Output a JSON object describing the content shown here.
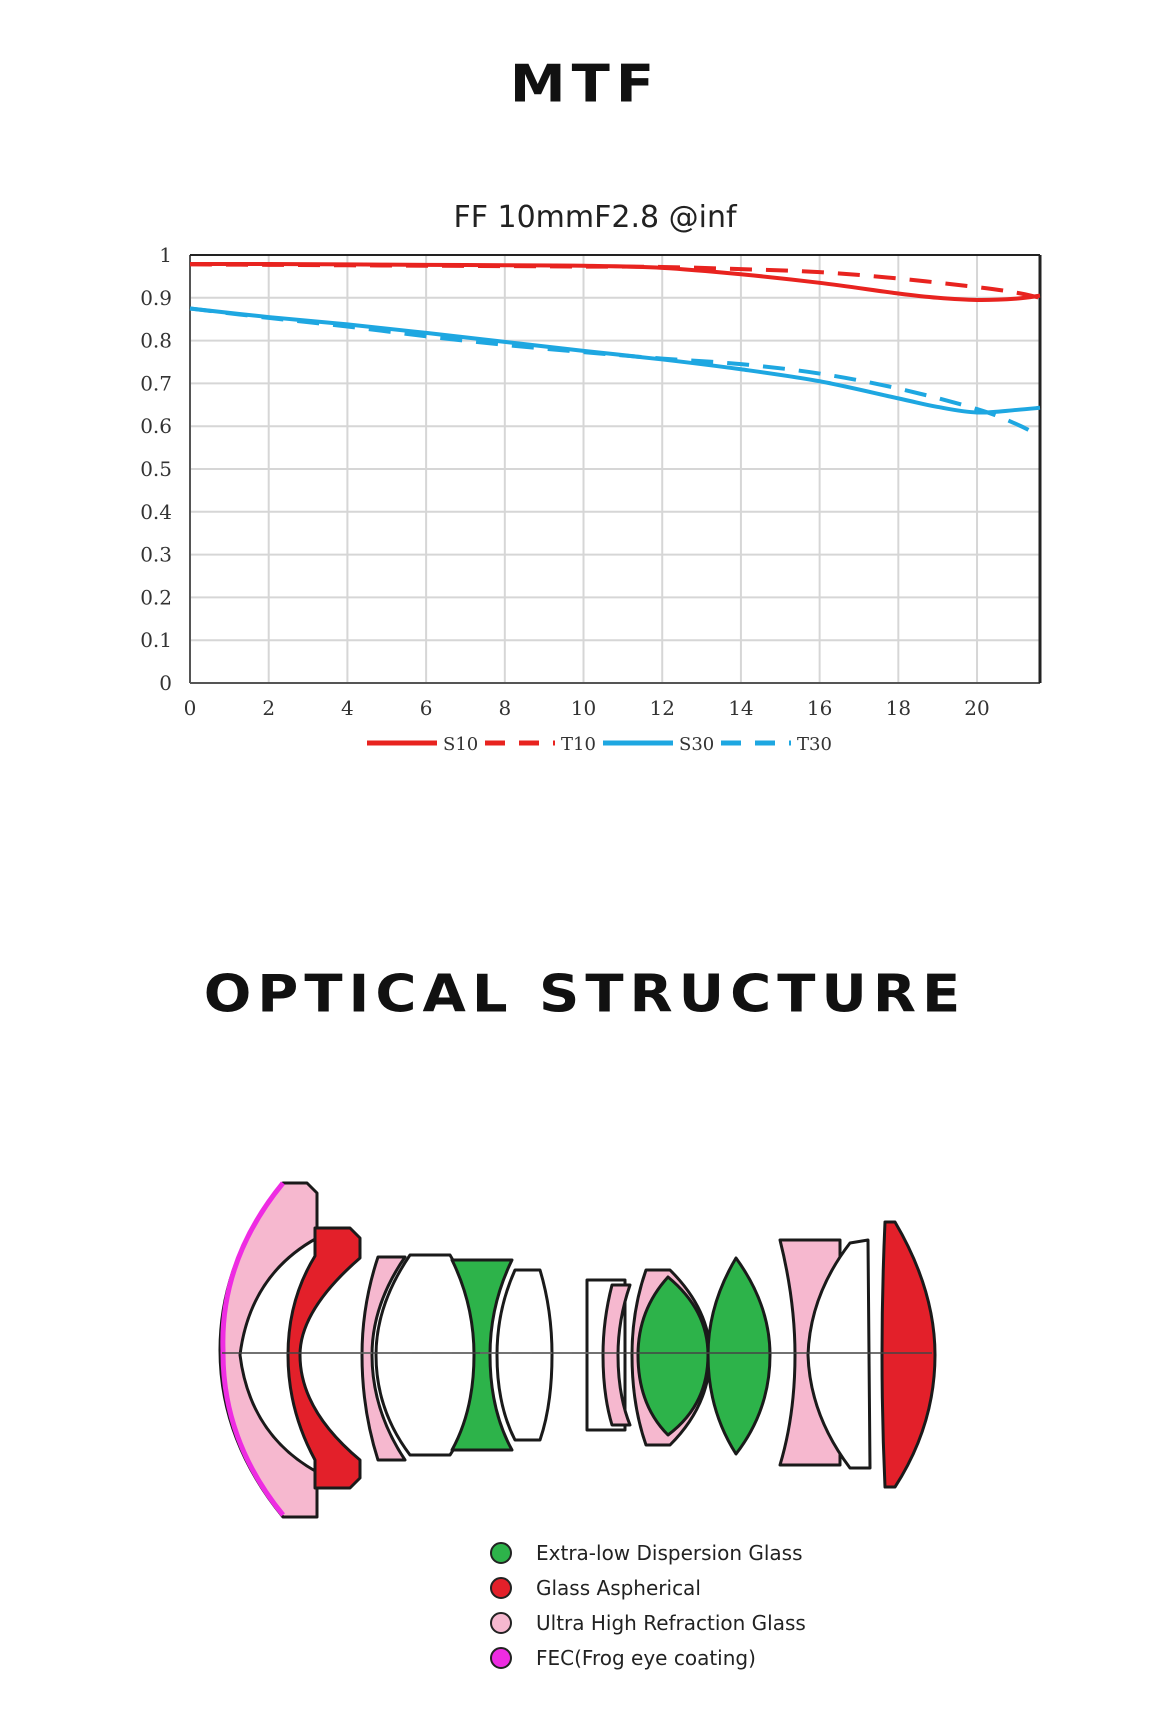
{
  "headings": {
    "mtf": "MTF",
    "optical": "OPTICAL STRUCTURE"
  },
  "chart_data": {
    "type": "line",
    "title": "FF 10mmF2.8 @inf",
    "xlabel": "",
    "ylabel": "",
    "xlim": [
      0,
      21.6
    ],
    "ylim": [
      0,
      1
    ],
    "x_ticks": [
      "0",
      "2",
      "4",
      "6",
      "8",
      "10",
      "12",
      "14",
      "16",
      "18",
      "20"
    ],
    "y_ticks": [
      "0",
      "0.1",
      "0.2",
      "0.3",
      "0.4",
      "0.5",
      "0.6",
      "0.7",
      "0.8",
      "0.9",
      "1"
    ],
    "grid": true,
    "legend_position": "bottom",
    "series": [
      {
        "name": "S10",
        "color": "#e8231f",
        "dashed": false,
        "x": [
          0,
          2,
          4,
          6,
          8,
          10,
          12,
          14,
          16,
          18,
          19,
          20,
          21,
          21.6
        ],
        "y": [
          0.979,
          0.979,
          0.978,
          0.977,
          0.976,
          0.975,
          0.97,
          0.955,
          0.935,
          0.91,
          0.9,
          0.895,
          0.898,
          0.905
        ]
      },
      {
        "name": "T10",
        "color": "#e8231f",
        "dashed": true,
        "x": [
          0,
          2,
          4,
          6,
          8,
          10,
          12,
          14,
          16,
          18,
          20,
          21,
          21.6
        ],
        "y": [
          0.978,
          0.977,
          0.976,
          0.975,
          0.974,
          0.973,
          0.972,
          0.967,
          0.96,
          0.945,
          0.925,
          0.912,
          0.9
        ]
      },
      {
        "name": "S30",
        "color": "#1ea7e1",
        "dashed": false,
        "x": [
          0,
          2,
          4,
          6,
          8,
          10,
          12,
          14,
          16,
          18,
          19,
          20,
          21,
          21.6
        ],
        "y": [
          0.875,
          0.855,
          0.838,
          0.818,
          0.797,
          0.776,
          0.756,
          0.733,
          0.705,
          0.665,
          0.645,
          0.632,
          0.638,
          0.643
        ]
      },
      {
        "name": "T30",
        "color": "#1ea7e1",
        "dashed": true,
        "x": [
          0,
          2,
          4,
          6,
          8,
          10,
          12,
          14,
          16,
          18,
          20,
          21,
          21.6
        ],
        "y": [
          0.875,
          0.853,
          0.833,
          0.81,
          0.79,
          0.773,
          0.758,
          0.745,
          0.723,
          0.688,
          0.64,
          0.605,
          0.577
        ]
      }
    ]
  },
  "optical_legend": [
    {
      "label": "Extra-low Dispersion Glass",
      "color": "#2db34a"
    },
    {
      "label": "Glass Aspherical",
      "color": "#e3202a"
    },
    {
      "label": "Ultra High Refraction Glass",
      "color": "#f6b8cf"
    },
    {
      "label": "FEC(Frog eye coating)",
      "color": "#ee2ce2"
    }
  ]
}
